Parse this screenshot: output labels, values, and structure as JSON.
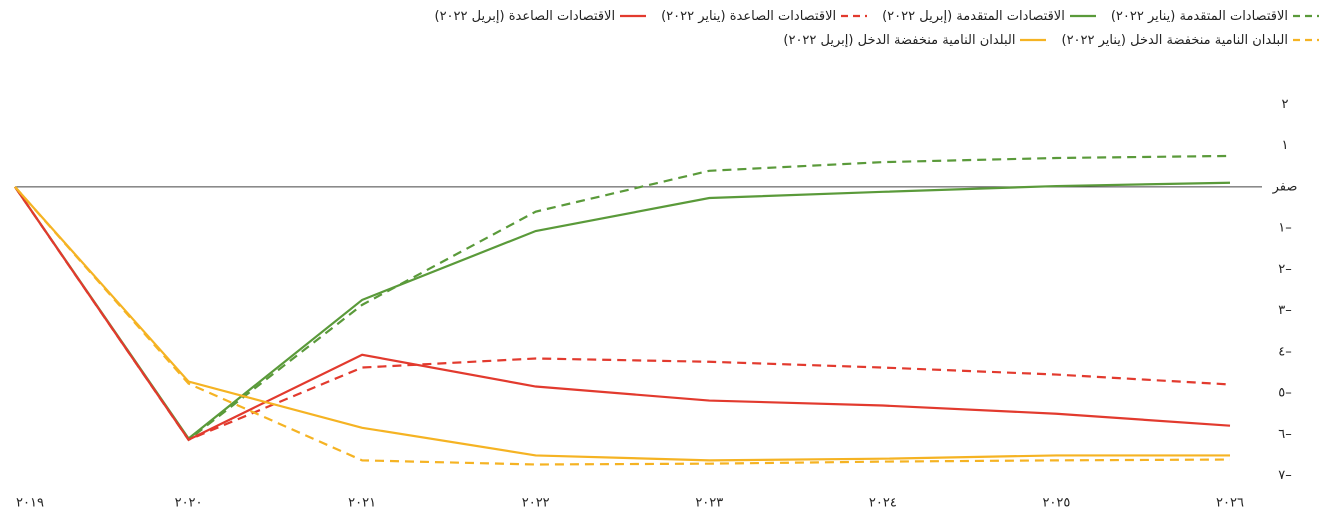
{
  "chart_data": {
    "type": "line",
    "categories": [
      "٢٠١٩",
      "٢٠٢٠",
      "٢٠٢١",
      "٢٠٢٢",
      "٢٠٢٣",
      "٢٠٢٤",
      "٢٠٢٥",
      "٢٠٢٦"
    ],
    "series": [
      {
        "name": "الاقتصادات المتقدمة (يناير ٢٠٢٢)",
        "color": "#5a9a3a",
        "dashed": true,
        "values": [
          0,
          -6.13,
          -2.86,
          -0.6,
          0.39,
          0.6,
          0.7,
          0.75
        ]
      },
      {
        "name": "الاقتصادات المتقدمة (إبريل ٢٠٢٢)",
        "color": "#5a9a3a",
        "dashed": false,
        "values": [
          0,
          -6.1,
          -2.74,
          -1.07,
          -0.27,
          -0.12,
          0.02,
          0.1
        ]
      },
      {
        "name": "الاقتصادات الصاعدة (يناير ٢٠٢٢)",
        "color": "#e23a2e",
        "dashed": true,
        "values": [
          0,
          -6.13,
          -4.38,
          -4.16,
          -4.24,
          -4.38,
          -4.55,
          -4.79
        ]
      },
      {
        "name": "الاقتصادات الصاعدة (إبريل ٢٠٢٢)",
        "color": "#e23a2e",
        "dashed": false,
        "values": [
          0,
          -6.13,
          -4.07,
          -4.84,
          -5.18,
          -5.3,
          -5.5,
          -5.79
        ]
      },
      {
        "name": "البلدان النامية منخفضة الدخل (يناير ٢٠٢٢)",
        "color": "#f5b323",
        "dashed": true,
        "values": [
          0,
          -4.77,
          -6.63,
          -6.73,
          -6.71,
          -6.66,
          -6.63,
          -6.61
        ]
      },
      {
        "name": "البلدان النامية منخفضة الدخل (إبريل ٢٠٢٢)",
        "color": "#f5b323",
        "dashed": false,
        "values": [
          0,
          -4.72,
          -5.84,
          -6.51,
          -6.63,
          -6.59,
          -6.51,
          -6.51
        ]
      }
    ],
    "ylim": [
      -7.3,
      2.3
    ],
    "yticks": [
      {
        "value": 2,
        "label": "٢"
      },
      {
        "value": 1,
        "label": "١"
      },
      {
        "value": 0,
        "label": "صفر"
      },
      {
        "value": -1,
        "label": "١–"
      },
      {
        "value": -2,
        "label": "٢–"
      },
      {
        "value": -3,
        "label": "٣–"
      },
      {
        "value": -4,
        "label": "٤–"
      },
      {
        "value": -5,
        "label": "٥–"
      },
      {
        "value": -6,
        "label": "٦–"
      },
      {
        "value": -7,
        "label": "٧–"
      }
    ],
    "grid": false
  }
}
